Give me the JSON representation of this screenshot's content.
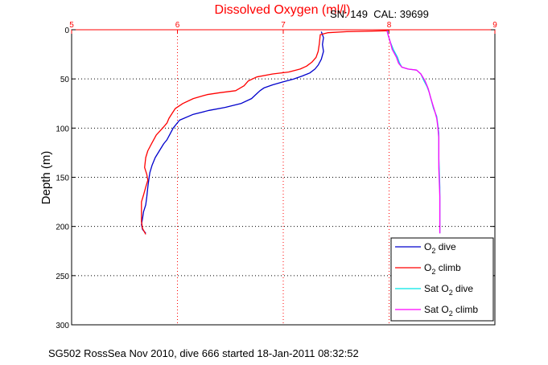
{
  "chart_data": {
    "type": "line",
    "title": "Dissolved Oxygen (ml/l)",
    "ylabel": "Depth (m)",
    "xlim": [
      5,
      9
    ],
    "ylim": [
      0,
      300
    ],
    "y_inverted": true,
    "x_axis_position": "top",
    "xticks": [
      "5",
      "6",
      "7",
      "8",
      "9"
    ],
    "yticks": [
      "0",
      "50",
      "100",
      "150",
      "200",
      "250",
      "300"
    ],
    "grid": true,
    "legend_position": "bottom-right",
    "colors": {
      "x_axis": "#ff0000",
      "y_axis": "#000000",
      "grid": "#000000"
    },
    "series": [
      {
        "name": "O2 dive",
        "legend_main": "O",
        "legend_sub": "2",
        "legend_tail": " dive",
        "color": "#0000cc",
        "points": [
          [
            7.36,
            2
          ],
          [
            7.38,
            8
          ],
          [
            7.37,
            15
          ],
          [
            7.38,
            22
          ],
          [
            7.36,
            30
          ],
          [
            7.33,
            36
          ],
          [
            7.3,
            40
          ],
          [
            7.25,
            44
          ],
          [
            7.18,
            47
          ],
          [
            7.1,
            50
          ],
          [
            7.0,
            53
          ],
          [
            6.9,
            56
          ],
          [
            6.82,
            59
          ],
          [
            6.78,
            62
          ],
          [
            6.75,
            65
          ],
          [
            6.7,
            70
          ],
          [
            6.6,
            75
          ],
          [
            6.45,
            79
          ],
          [
            6.3,
            82
          ],
          [
            6.15,
            86
          ],
          [
            6.02,
            92
          ],
          [
            5.96,
            100
          ],
          [
            5.93,
            106
          ],
          [
            5.9,
            112
          ],
          [
            5.87,
            116
          ],
          [
            5.83,
            123
          ],
          [
            5.79,
            130
          ],
          [
            5.76,
            138
          ],
          [
            5.74,
            145
          ],
          [
            5.73,
            152
          ],
          [
            5.72,
            160
          ],
          [
            5.71,
            170
          ],
          [
            5.7,
            178
          ],
          [
            5.68,
            185
          ],
          [
            5.67,
            192
          ],
          [
            5.66,
            198
          ],
          [
            5.67,
            203
          ],
          [
            5.7,
            207
          ]
        ]
      },
      {
        "name": "O2 climb",
        "legend_main": "O",
        "legend_sub": "2",
        "legend_tail": " climb",
        "color": "#ff0000",
        "points": [
          [
            8.0,
            1
          ],
          [
            7.6,
            2
          ],
          [
            7.42,
            3
          ],
          [
            7.35,
            5
          ],
          [
            7.34,
            15
          ],
          [
            7.33,
            22
          ],
          [
            7.31,
            28
          ],
          [
            7.27,
            33
          ],
          [
            7.22,
            37
          ],
          [
            7.16,
            40
          ],
          [
            7.05,
            43
          ],
          [
            6.9,
            45
          ],
          [
            6.75,
            48
          ],
          [
            6.67,
            52
          ],
          [
            6.63,
            57
          ],
          [
            6.55,
            62
          ],
          [
            6.4,
            64
          ],
          [
            6.28,
            66
          ],
          [
            6.15,
            70
          ],
          [
            6.05,
            75
          ],
          [
            5.98,
            80
          ],
          [
            5.95,
            85
          ],
          [
            5.92,
            90
          ],
          [
            5.9,
            95
          ],
          [
            5.86,
            100
          ],
          [
            5.8,
            107
          ],
          [
            5.76,
            115
          ],
          [
            5.72,
            123
          ],
          [
            5.7,
            130
          ],
          [
            5.69,
            140
          ],
          [
            5.71,
            147
          ],
          [
            5.72,
            153
          ],
          [
            5.7,
            160
          ],
          [
            5.68,
            168
          ],
          [
            5.66,
            175
          ],
          [
            5.66,
            185
          ],
          [
            5.66,
            195
          ],
          [
            5.67,
            202
          ],
          [
            5.7,
            208
          ]
        ]
      },
      {
        "name": "Sat O2 dive",
        "legend_main": "Sat O",
        "legend_sub": "2",
        "legend_tail": " dive",
        "color": "#00e5e5",
        "points": [
          [
            7.99,
            1
          ],
          [
            7.99,
            5
          ],
          [
            8.01,
            12
          ],
          [
            8.04,
            20
          ],
          [
            8.08,
            28
          ],
          [
            8.1,
            34
          ],
          [
            8.12,
            38
          ],
          [
            8.18,
            40
          ],
          [
            8.26,
            41
          ],
          [
            8.3,
            45
          ],
          [
            8.33,
            52
          ],
          [
            8.36,
            58
          ],
          [
            8.38,
            64
          ],
          [
            8.4,
            72
          ],
          [
            8.42,
            80
          ],
          [
            8.45,
            88
          ],
          [
            8.46,
            96
          ],
          [
            8.47,
            105
          ],
          [
            8.47,
            130
          ],
          [
            8.48,
            160
          ],
          [
            8.48,
            190
          ],
          [
            8.48,
            207
          ]
        ]
      },
      {
        "name": "Sat O2 climb",
        "legend_main": "Sat O",
        "legend_sub": "2",
        "legend_tail": " climb",
        "color": "#ff00ff",
        "points": [
          [
            7.98,
            1
          ],
          [
            7.99,
            5
          ],
          [
            8.01,
            12
          ],
          [
            8.03,
            20
          ],
          [
            8.07,
            28
          ],
          [
            8.09,
            34
          ],
          [
            8.12,
            38
          ],
          [
            8.18,
            40
          ],
          [
            8.26,
            41
          ],
          [
            8.3,
            45
          ],
          [
            8.34,
            52
          ],
          [
            8.37,
            60
          ],
          [
            8.39,
            68
          ],
          [
            8.41,
            75
          ],
          [
            8.43,
            82
          ],
          [
            8.45,
            90
          ],
          [
            8.46,
            98
          ],
          [
            8.47,
            110
          ],
          [
            8.47,
            140
          ],
          [
            8.48,
            170
          ],
          [
            8.48,
            200
          ],
          [
            8.48,
            207
          ]
        ]
      }
    ],
    "annotation": "SN: 149  CAL: 39699",
    "caption": "SG502 RossSea Nov 2010, dive 666 started 18-Jan-2011 08:32:52"
  }
}
